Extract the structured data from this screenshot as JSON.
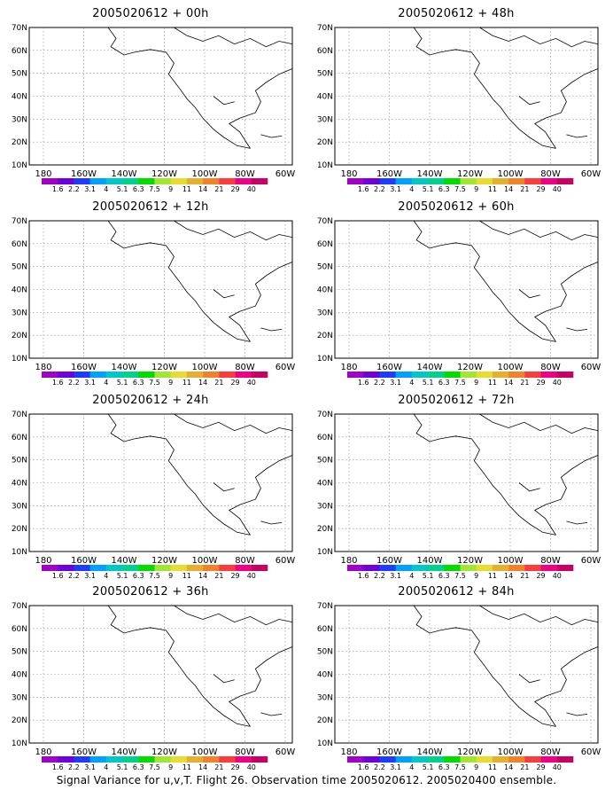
{
  "caption": "Signal Variance for u,v,T. Flight 26. Observation time 2005020612. 2005020400 ensemble.",
  "lat_labels": [
    "70N",
    "60N",
    "50N",
    "40N",
    "30N",
    "20N",
    "10N"
  ],
  "lon_labels": [
    "180",
    "160W",
    "140W",
    "120W",
    "100W",
    "80W",
    "60W"
  ],
  "colorbar_labels": [
    "1.6",
    "2.2",
    "3.1",
    "4",
    "5.1",
    "6.3",
    "7.5",
    "9",
    "11",
    "14",
    "21",
    "29",
    "40"
  ],
  "colorbar_colors": [
    "#a000c8",
    "#6e00dc",
    "#1e3cff",
    "#00a0ff",
    "#00c8c8",
    "#00d28c",
    "#00dc00",
    "#a0e632",
    "#e6dc32",
    "#e6af2d",
    "#f08228",
    "#fa3c3c",
    "#f00082",
    "#c80064"
  ],
  "panels": [
    {
      "title": "2005020612 + 00h"
    },
    {
      "title": "2005020612 + 48h"
    },
    {
      "title": "2005020612 + 12h"
    },
    {
      "title": "2005020612 + 60h"
    },
    {
      "title": "2005020612 + 24h"
    },
    {
      "title": "2005020612 + 72h"
    },
    {
      "title": "2005020612 + 36h"
    },
    {
      "title": "2005020612 + 84h"
    }
  ]
}
